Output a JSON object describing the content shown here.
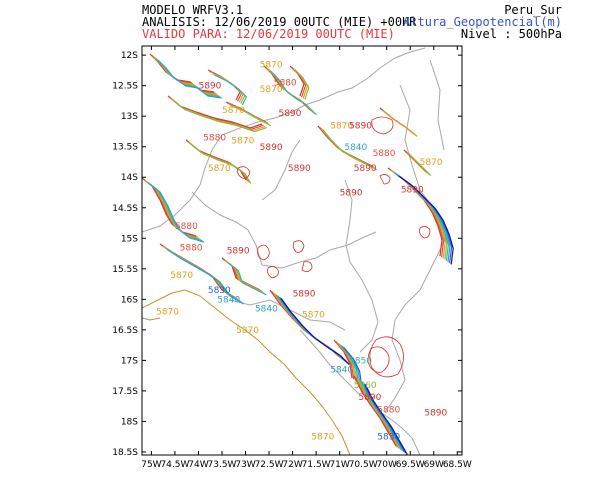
{
  "header": {
    "model": "MODELO WRFV3.1",
    "analysis": "ANALISIS: 12/06/2019 00UTC (MIE) +00HR",
    "valid": "VALIDO PARA: 12/06/2019 00UTC (MIE)",
    "region": "Peru_Sur",
    "variable": "Altura_Geopotencial(m)",
    "level": "Nivel : 500hPa"
  },
  "colors": {
    "analysis_text": "#000000",
    "valid_text": "#e8383d",
    "variable_text": "#3355cc",
    "c5870": "#e0a020",
    "c5880": "#e05040",
    "c5890": "#d83030",
    "c5860": "#80c040",
    "c5850": "#40b0a0",
    "c5840": "#30a0d0",
    "c5830": "#2060e0",
    "c5820": "#1010a0",
    "border": "#a8a8a8",
    "coast": "#c89030"
  },
  "axes": {
    "x_ticks": [
      "75W",
      "74.5W",
      "74W",
      "73.5W",
      "73W",
      "72.5W",
      "72W",
      "71.5W",
      "71W",
      "70.5W",
      "70W",
      "69.5W",
      "69W",
      "68.5W"
    ],
    "y_ticks": [
      "12S",
      "12.5S",
      "13S",
      "13.5S",
      "14S",
      "14.5S",
      "15S",
      "15.5S",
      "16S",
      "16.5S",
      "17S",
      "17.5S",
      "18S",
      "18.5S"
    ]
  },
  "contour_labels": [
    {
      "text": "5870",
      "lon": -72.7,
      "lat": -12.2,
      "level": "c5870"
    },
    {
      "text": "5890",
      "lon": -74.0,
      "lat": -12.55,
      "level": "c5890"
    },
    {
      "text": "5870",
      "lon": -72.7,
      "lat": -12.6,
      "level": "c5870"
    },
    {
      "text": "5880",
      "lon": -72.4,
      "lat": -12.5,
      "level": "c5880"
    },
    {
      "text": "5870",
      "lon": -73.5,
      "lat": -12.95,
      "level": "c5870"
    },
    {
      "text": "5890",
      "lon": -72.3,
      "lat": -13.0,
      "level": "c5890"
    },
    {
      "text": "5870",
      "lon": -71.2,
      "lat": -13.2,
      "level": "c5870"
    },
    {
      "text": "5890",
      "lon": -70.8,
      "lat": -13.2,
      "level": "c5890"
    },
    {
      "text": "5880",
      "lon": -73.9,
      "lat": -13.4,
      "level": "c5880"
    },
    {
      "text": "5870",
      "lon": -73.3,
      "lat": -13.45,
      "level": "c5870"
    },
    {
      "text": "5890",
      "lon": -72.7,
      "lat": -13.55,
      "level": "c5890"
    },
    {
      "text": "5840",
      "lon": -70.9,
      "lat": -13.55,
      "level": "c5840"
    },
    {
      "text": "5880",
      "lon": -70.3,
      "lat": -13.65,
      "level": "c5880"
    },
    {
      "text": "5870",
      "lon": -73.8,
      "lat": -13.9,
      "level": "c5870"
    },
    {
      "text": "5890",
      "lon": -72.1,
      "lat": -13.9,
      "level": "c5890"
    },
    {
      "text": "5890",
      "lon": -70.7,
      "lat": -13.9,
      "level": "c5890"
    },
    {
      "text": "5870",
      "lon": -69.3,
      "lat": -13.8,
      "level": "c5870"
    },
    {
      "text": "5890",
      "lon": -69.7,
      "lat": -14.25,
      "level": "c5890"
    },
    {
      "text": "5890",
      "lon": -71.0,
      "lat": -14.3,
      "level": "c5890"
    },
    {
      "text": "5880",
      "lon": -74.5,
      "lat": -14.85,
      "level": "c5880"
    },
    {
      "text": "5880",
      "lon": -74.4,
      "lat": -15.2,
      "level": "c5880"
    },
    {
      "text": "5890",
      "lon": -73.4,
      "lat": -15.25,
      "level": "c5890"
    },
    {
      "text": "5870",
      "lon": -74.6,
      "lat": -15.65,
      "level": "c5870"
    },
    {
      "text": "5830",
      "lon": -73.8,
      "lat": -15.9,
      "level": "c5830"
    },
    {
      "text": "5840",
      "lon": -73.6,
      "lat": -16.05,
      "level": "c5840"
    },
    {
      "text": "5890",
      "lon": -72.0,
      "lat": -15.95,
      "level": "c5890"
    },
    {
      "text": "5840",
      "lon": -72.8,
      "lat": -16.2,
      "level": "c5840"
    },
    {
      "text": "5870",
      "lon": -74.9,
      "lat": -16.25,
      "level": "c5870"
    },
    {
      "text": "5870",
      "lon": -71.8,
      "lat": -16.3,
      "level": "c5870"
    },
    {
      "text": "5870",
      "lon": -73.2,
      "lat": -16.55,
      "level": "c5870"
    },
    {
      "text": "5850",
      "lon": -70.8,
      "lat": -17.05,
      "level": "c5850"
    },
    {
      "text": "5840",
      "lon": -71.2,
      "lat": -17.2,
      "level": "c5840"
    },
    {
      "text": "5860",
      "lon": -70.7,
      "lat": -17.45,
      "level": "c5860"
    },
    {
      "text": "5890",
      "lon": -70.6,
      "lat": -17.65,
      "level": "c5890"
    },
    {
      "text": "5880",
      "lon": -70.2,
      "lat": -17.85,
      "level": "c5880"
    },
    {
      "text": "5890",
      "lon": -69.2,
      "lat": -17.9,
      "level": "c5890"
    },
    {
      "text": "5830",
      "lon": -70.2,
      "lat": -18.3,
      "level": "c5830"
    },
    {
      "text": "5870",
      "lon": -71.6,
      "lat": -18.3,
      "level": "c5870"
    }
  ]
}
